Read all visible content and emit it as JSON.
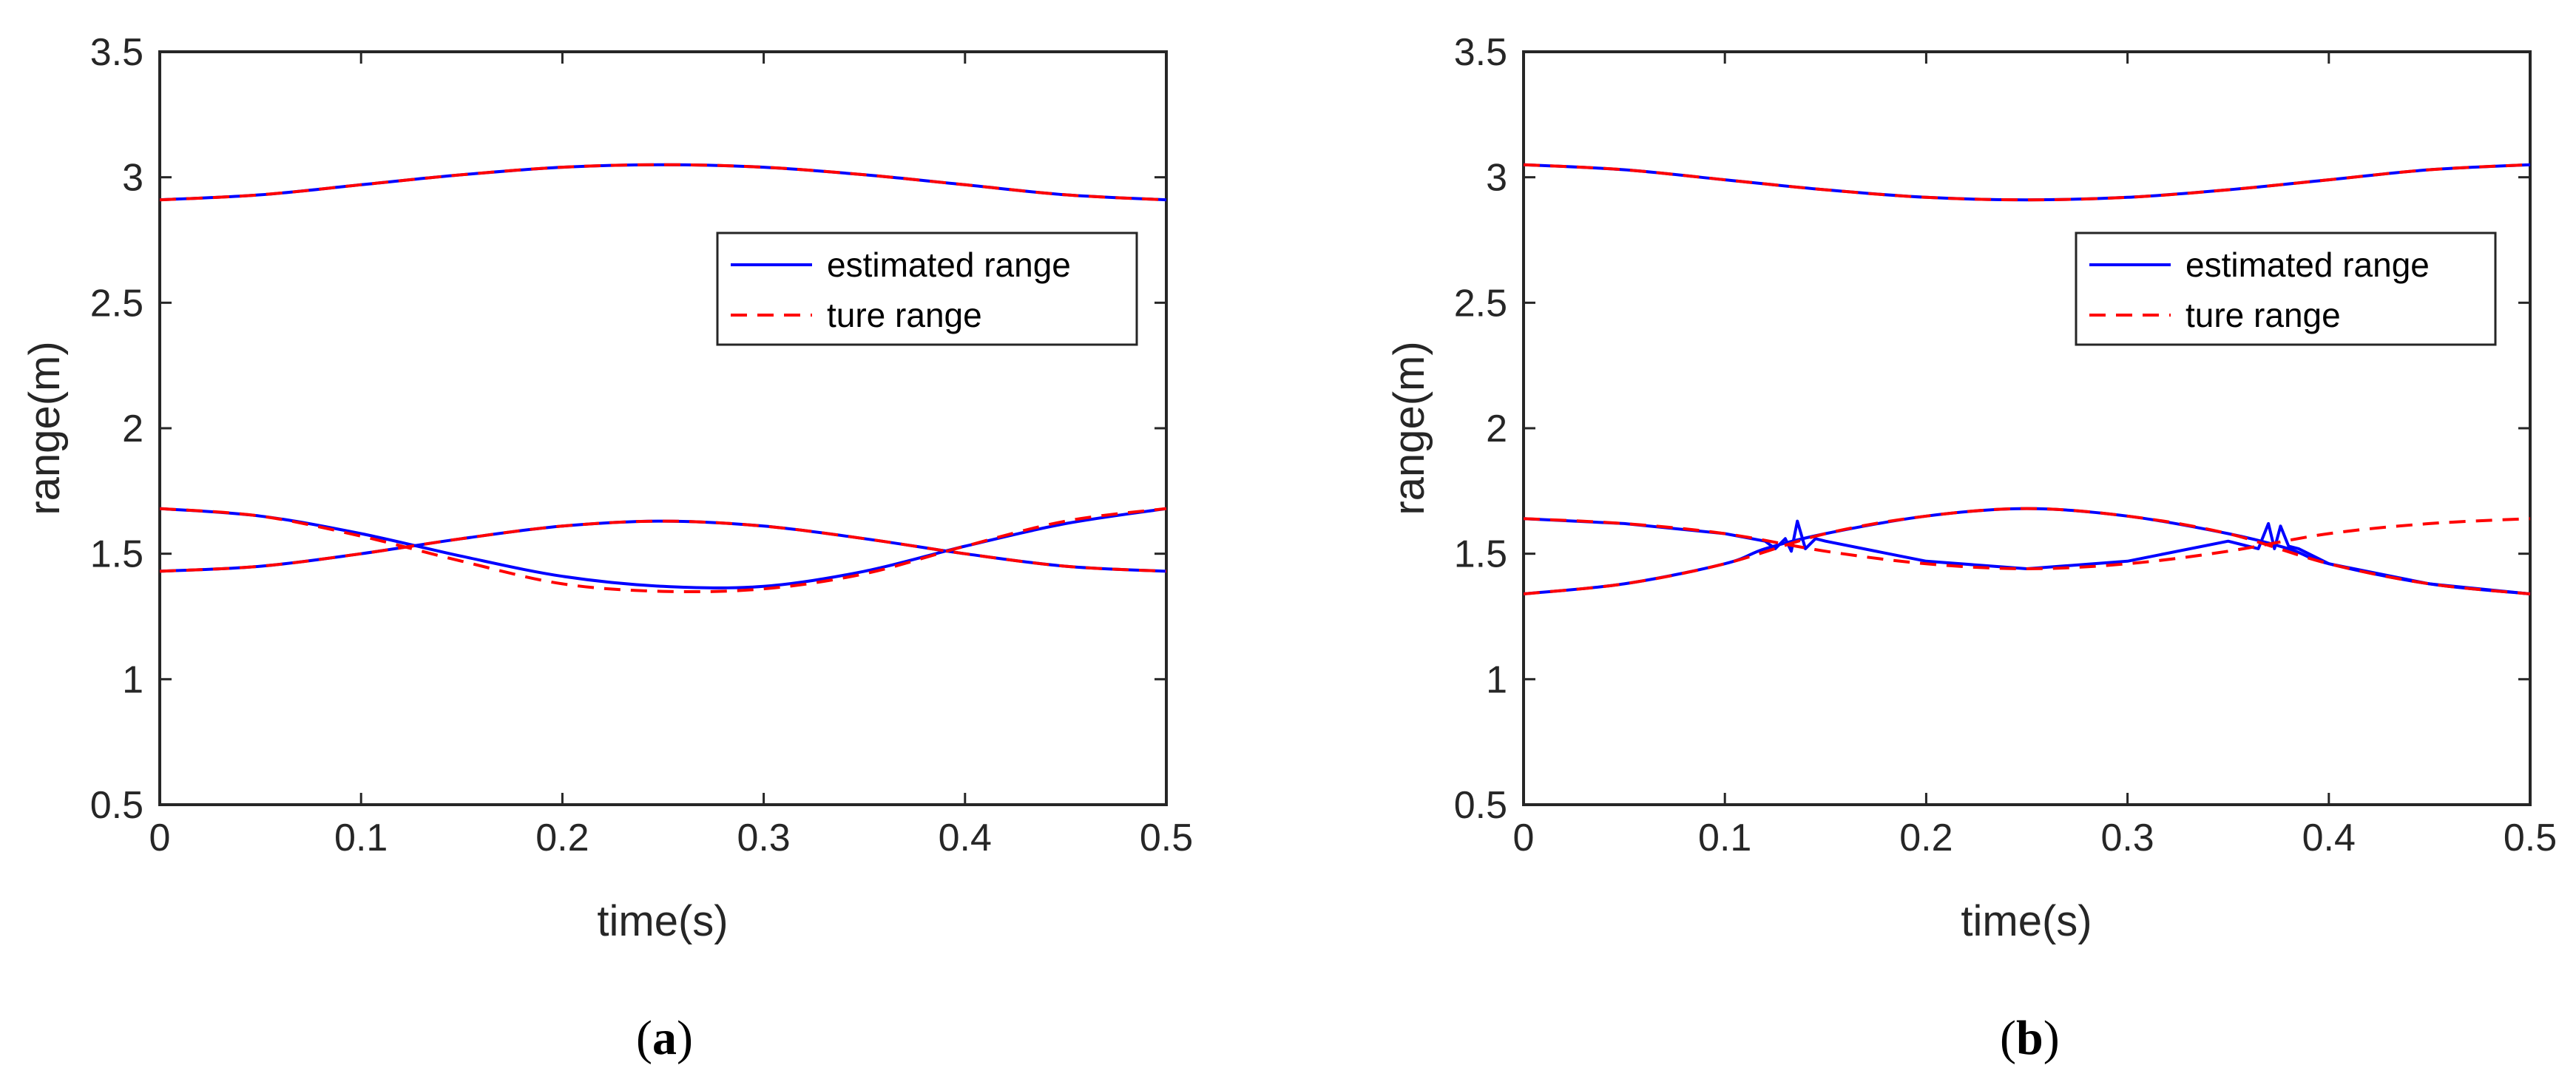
{
  "chart_data": [
    {
      "type": "line",
      "panel": "a",
      "caption": {
        "open": "(",
        "letter": "a",
        "close": ")"
      },
      "xlabel": "time(s)",
      "ylabel": "range(m)",
      "xlim": [
        0,
        0.5
      ],
      "ylim": [
        0.5,
        3.5
      ],
      "xticks": [
        0,
        0.1,
        0.2,
        0.3,
        0.4,
        0.5
      ],
      "yticks": [
        0.5,
        1,
        1.5,
        2,
        2.5,
        3,
        3.5
      ],
      "xtick_labels": [
        "0",
        "0.1",
        "0.2",
        "0.3",
        "0.4",
        "0.5"
      ],
      "ytick_labels": [
        "0.5",
        "1",
        "1.5",
        "2",
        "2.5",
        "3",
        "3.5"
      ],
      "legend": {
        "position": "top-right",
        "entries": [
          "estimated range",
          "ture range"
        ]
      },
      "series": [
        {
          "name": "estimated range",
          "color": "#0000ff",
          "style": "solid",
          "x": [
            0,
            0.05,
            0.1,
            0.15,
            0.2,
            0.25,
            0.3,
            0.35,
            0.4,
            0.45,
            0.5
          ],
          "y": [
            2.91,
            2.93,
            2.97,
            3.01,
            3.04,
            3.05,
            3.04,
            3.01,
            2.97,
            2.93,
            2.91
          ]
        },
        {
          "name": "estimated range",
          "color": "#0000ff",
          "style": "solid",
          "x": [
            0,
            0.05,
            0.1,
            0.15,
            0.2,
            0.25,
            0.3,
            0.35,
            0.4,
            0.45,
            0.5
          ],
          "y": [
            1.68,
            1.65,
            1.58,
            1.49,
            1.41,
            1.37,
            1.37,
            1.43,
            1.53,
            1.62,
            1.68
          ]
        },
        {
          "name": "estimated range",
          "color": "#0000ff",
          "style": "solid",
          "x": [
            0,
            0.05,
            0.1,
            0.15,
            0.2,
            0.25,
            0.3,
            0.35,
            0.4,
            0.45,
            0.5
          ],
          "y": [
            1.43,
            1.45,
            1.5,
            1.56,
            1.61,
            1.63,
            1.61,
            1.56,
            1.5,
            1.45,
            1.43
          ]
        },
        {
          "name": "ture range",
          "color": "#ff0000",
          "style": "dashed",
          "x": [
            0,
            0.05,
            0.1,
            0.15,
            0.2,
            0.25,
            0.3,
            0.35,
            0.4,
            0.45,
            0.5
          ],
          "y": [
            2.91,
            2.93,
            2.97,
            3.01,
            3.04,
            3.05,
            3.04,
            3.01,
            2.97,
            2.93,
            2.91
          ]
        },
        {
          "name": "ture range",
          "color": "#ff0000",
          "style": "dashed",
          "x": [
            0,
            0.05,
            0.1,
            0.15,
            0.2,
            0.25,
            0.3,
            0.35,
            0.4,
            0.45,
            0.5
          ],
          "y": [
            1.68,
            1.65,
            1.57,
            1.47,
            1.38,
            1.35,
            1.36,
            1.42,
            1.53,
            1.63,
            1.68
          ]
        },
        {
          "name": "ture range",
          "color": "#ff0000",
          "style": "dashed",
          "x": [
            0,
            0.05,
            0.1,
            0.15,
            0.2,
            0.25,
            0.3,
            0.35,
            0.4,
            0.45,
            0.5
          ],
          "y": [
            1.43,
            1.45,
            1.5,
            1.56,
            1.61,
            1.63,
            1.61,
            1.56,
            1.5,
            1.45,
            1.43
          ]
        }
      ]
    },
    {
      "type": "line",
      "panel": "b",
      "caption": {
        "open": "(",
        "letter": "b",
        "close": ")"
      },
      "xlabel": "time(s)",
      "ylabel": "range(m)",
      "xlim": [
        0,
        0.5
      ],
      "ylim": [
        0.5,
        3.5
      ],
      "xticks": [
        0,
        0.1,
        0.2,
        0.3,
        0.4,
        0.5
      ],
      "yticks": [
        0.5,
        1,
        1.5,
        2,
        2.5,
        3,
        3.5
      ],
      "xtick_labels": [
        "0",
        "0.1",
        "0.2",
        "0.3",
        "0.4",
        "0.5"
      ],
      "ytick_labels": [
        "0.5",
        "1",
        "1.5",
        "2",
        "2.5",
        "3",
        "3.5"
      ],
      "legend": {
        "position": "top-right",
        "entries": [
          "estimated range",
          "ture range"
        ]
      },
      "series": [
        {
          "name": "estimated range",
          "color": "#0000ff",
          "style": "solid",
          "x": [
            0,
            0.05,
            0.1,
            0.15,
            0.2,
            0.25,
            0.3,
            0.35,
            0.4,
            0.45,
            0.5
          ],
          "y": [
            3.05,
            3.03,
            2.99,
            2.95,
            2.92,
            2.91,
            2.92,
            2.95,
            2.99,
            3.03,
            3.05
          ]
        },
        {
          "name": "estimated range",
          "color": "#0000ff",
          "style": "solid",
          "x": [
            0,
            0.05,
            0.1,
            0.12,
            0.125,
            0.13,
            0.133,
            0.136,
            0.14,
            0.145,
            0.15,
            0.2,
            0.25,
            0.3,
            0.35,
            0.365,
            0.37,
            0.373,
            0.376,
            0.38,
            0.385,
            0.4,
            0.45,
            0.5
          ],
          "y": [
            1.64,
            1.62,
            1.58,
            1.55,
            1.52,
            1.56,
            1.51,
            1.63,
            1.52,
            1.56,
            1.55,
            1.47,
            1.44,
            1.47,
            1.55,
            1.52,
            1.62,
            1.52,
            1.61,
            1.53,
            1.52,
            1.46,
            1.38,
            1.34
          ]
        },
        {
          "name": "estimated range",
          "color": "#0000ff",
          "style": "solid",
          "x": [
            0,
            0.05,
            0.1,
            0.12,
            0.15,
            0.2,
            0.25,
            0.3,
            0.35,
            0.38,
            0.4,
            0.45,
            0.5
          ],
          "y": [
            1.34,
            1.38,
            1.46,
            1.52,
            1.58,
            1.65,
            1.68,
            1.65,
            1.58,
            1.52,
            1.46,
            1.38,
            1.34
          ]
        },
        {
          "name": "ture range",
          "color": "#ff0000",
          "style": "dashed",
          "x": [
            0,
            0.05,
            0.1,
            0.15,
            0.2,
            0.25,
            0.3,
            0.35,
            0.4,
            0.45,
            0.5
          ],
          "y": [
            3.05,
            3.03,
            2.99,
            2.95,
            2.92,
            2.91,
            2.92,
            2.95,
            2.99,
            3.03,
            3.05
          ]
        },
        {
          "name": "ture range",
          "color": "#ff0000",
          "style": "dashed",
          "x": [
            0,
            0.05,
            0.1,
            0.15,
            0.2,
            0.25,
            0.3,
            0.35,
            0.4,
            0.45,
            0.5
          ],
          "y": [
            1.64,
            1.62,
            1.58,
            1.51,
            1.46,
            1.44,
            1.46,
            1.51,
            1.58,
            1.62,
            1.64
          ]
        },
        {
          "name": "ture range",
          "color": "#ff0000",
          "style": "dashed",
          "x": [
            0,
            0.05,
            0.1,
            0.15,
            0.2,
            0.25,
            0.3,
            0.35,
            0.4,
            0.45,
            0.5
          ],
          "y": [
            1.34,
            1.38,
            1.46,
            1.58,
            1.65,
            1.68,
            1.65,
            1.58,
            1.46,
            1.38,
            1.34
          ]
        }
      ]
    }
  ]
}
